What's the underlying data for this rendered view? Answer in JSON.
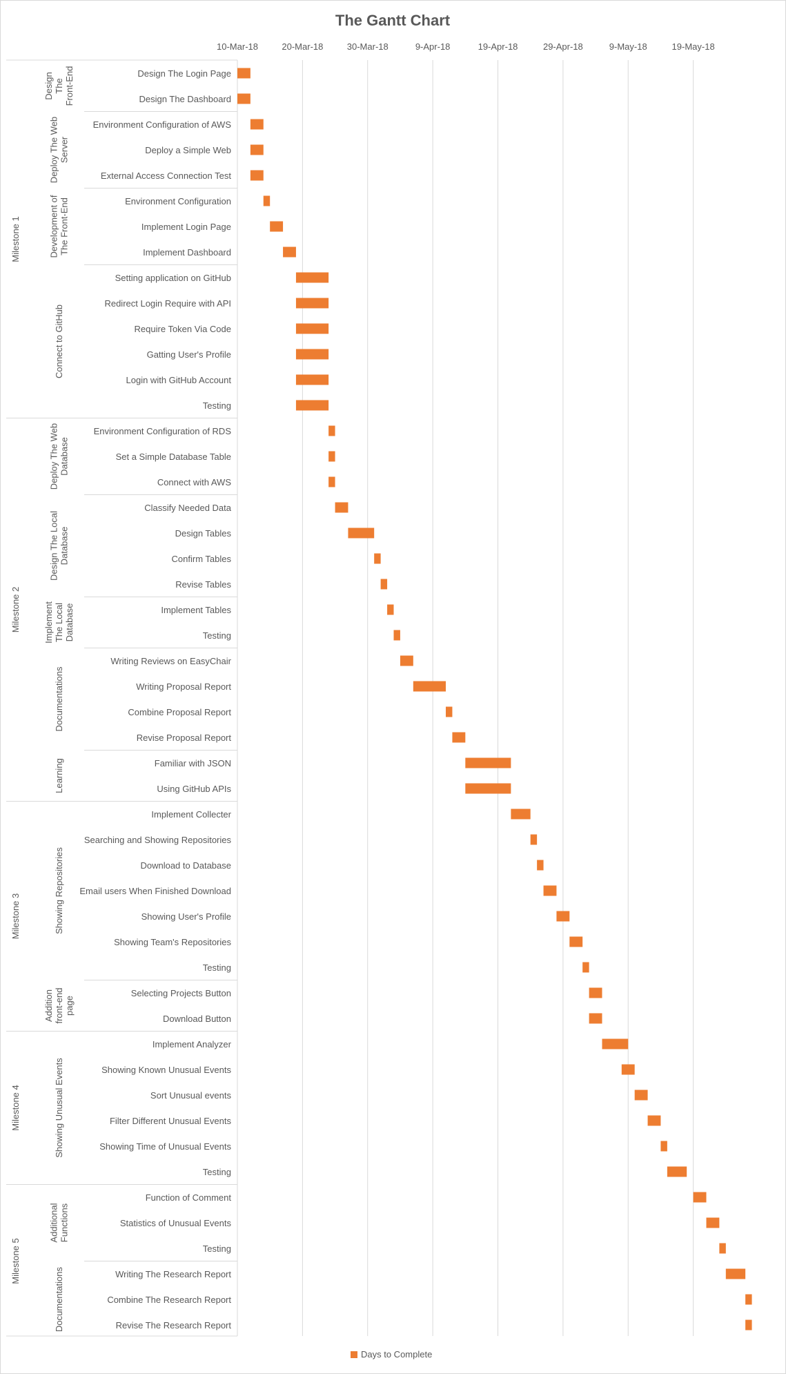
{
  "chart_data": {
    "type": "bar",
    "subtype": "gantt",
    "title": "The Gantt Chart",
    "bar_color": "#ed7d31",
    "grid": true,
    "legend": {
      "position": "bottom",
      "entries": [
        "Days to Complete"
      ]
    },
    "x_axis": {
      "position": "top",
      "range": [
        "2018-03-10",
        "2018-05-29"
      ],
      "tick_labels": [
        "10-Mar-18",
        "20-Mar-18",
        "30-Mar-18",
        "9-Apr-18",
        "19-Apr-18",
        "29-Apr-18",
        "9-May-18",
        "19-May-18"
      ],
      "tick_dates": [
        "2018-03-10",
        "2018-03-20",
        "2018-03-30",
        "2018-04-09",
        "2018-04-19",
        "2018-04-29",
        "2018-05-09",
        "2018-05-19"
      ]
    },
    "milestones": [
      {
        "name": "Milestone 1",
        "groups": [
          {
            "name": "Design The Front-End",
            "tasks": [
              {
                "name": "Design The Login Page",
                "start": "2018-03-10",
                "days": 2
              },
              {
                "name": "Design The Dashboard",
                "start": "2018-03-10",
                "days": 2
              }
            ]
          },
          {
            "name": "Deploy The Web Server",
            "tasks": [
              {
                "name": "Environment Configuration of AWS",
                "start": "2018-03-12",
                "days": 2
              },
              {
                "name": "Deploy a Simple Web",
                "start": "2018-03-12",
                "days": 2
              },
              {
                "name": "External Access Connection Test",
                "start": "2018-03-12",
                "days": 2
              }
            ]
          },
          {
            "name": "Development of The Front-End",
            "tasks": [
              {
                "name": "Environment Configuration",
                "start": "2018-03-14",
                "days": 1
              },
              {
                "name": "Implement Login Page",
                "start": "2018-03-15",
                "days": 2
              },
              {
                "name": "Implement Dashboard",
                "start": "2018-03-17",
                "days": 2
              }
            ]
          },
          {
            "name": "Connect to GitHub",
            "tasks": [
              {
                "name": "Setting application on GitHub",
                "start": "2018-03-19",
                "days": 5
              },
              {
                "name": "Redirect Login Require with API",
                "start": "2018-03-19",
                "days": 5
              },
              {
                "name": "Require Token Via Code",
                "start": "2018-03-19",
                "days": 5
              },
              {
                "name": "Gatting User's Profile",
                "start": "2018-03-19",
                "days": 5
              },
              {
                "name": "Login with GitHub Account",
                "start": "2018-03-19",
                "days": 5
              },
              {
                "name": "Testing",
                "start": "2018-03-19",
                "days": 5
              }
            ]
          }
        ]
      },
      {
        "name": "Milestone 2",
        "groups": [
          {
            "name": "Deploy The Web Database",
            "tasks": [
              {
                "name": "Environment Configuration of RDS",
                "start": "2018-03-24",
                "days": 1
              },
              {
                "name": "Set a Simple Database Table",
                "start": "2018-03-24",
                "days": 1
              },
              {
                "name": "Connect with AWS",
                "start": "2018-03-24",
                "days": 1
              }
            ]
          },
          {
            "name": "Design The Local Database",
            "tasks": [
              {
                "name": "Classify Needed Data",
                "start": "2018-03-25",
                "days": 2
              },
              {
                "name": "Design Tables",
                "start": "2018-03-27",
                "days": 4
              },
              {
                "name": "Confirm Tables",
                "start": "2018-03-31",
                "days": 1
              },
              {
                "name": "Revise Tables",
                "start": "2018-04-01",
                "days": 1
              }
            ]
          },
          {
            "name": "Implement The Local Database",
            "tasks": [
              {
                "name": "Implement Tables",
                "start": "2018-04-02",
                "days": 1
              },
              {
                "name": "Testing",
                "start": "2018-04-03",
                "days": 1
              }
            ]
          },
          {
            "name": "Documentations",
            "tasks": [
              {
                "name": "Writing Reviews on EasyChair",
                "start": "2018-04-04",
                "days": 2
              },
              {
                "name": "Writing Proposal Report",
                "start": "2018-04-06",
                "days": 5
              },
              {
                "name": "Combine Proposal Report",
                "start": "2018-04-11",
                "days": 1
              },
              {
                "name": "Revise Proposal Report",
                "start": "2018-04-12",
                "days": 2
              }
            ]
          },
          {
            "name": "Learning",
            "tasks": [
              {
                "name": "Familiar with JSON",
                "start": "2018-04-14",
                "days": 7
              },
              {
                "name": "Using GitHub APIs",
                "start": "2018-04-14",
                "days": 7
              }
            ]
          }
        ]
      },
      {
        "name": "Milestone 3",
        "groups": [
          {
            "name": "Showing Repositories",
            "tasks": [
              {
                "name": "Implement Collecter",
                "start": "2018-04-21",
                "days": 3
              },
              {
                "name": "Searching and Showing Repositories",
                "start": "2018-04-24",
                "days": 1
              },
              {
                "name": "Download to Database",
                "start": "2018-04-25",
                "days": 1
              },
              {
                "name": "Email users When Finished Download",
                "start": "2018-04-26",
                "days": 2
              },
              {
                "name": "Showing User's Profile",
                "start": "2018-04-28",
                "days": 2
              },
              {
                "name": "Showing Team's Repositories",
                "start": "2018-04-30",
                "days": 2
              },
              {
                "name": "Testing",
                "start": "2018-05-02",
                "days": 1
              }
            ]
          },
          {
            "name": "Addition front-end page",
            "tasks": [
              {
                "name": "Selecting Projects Button",
                "start": "2018-05-03",
                "days": 2
              },
              {
                "name": "Download Button",
                "start": "2018-05-03",
                "days": 2
              }
            ]
          }
        ]
      },
      {
        "name": "Milestone 4",
        "groups": [
          {
            "name": "Showing Unusual Events",
            "tasks": [
              {
                "name": "Implement Analyzer",
                "start": "2018-05-05",
                "days": 4
              },
              {
                "name": "Showing Known Unusual Events",
                "start": "2018-05-08",
                "days": 2
              },
              {
                "name": "Sort Unusual events",
                "start": "2018-05-10",
                "days": 2
              },
              {
                "name": "Filter Different Unusual Events",
                "start": "2018-05-12",
                "days": 2
              },
              {
                "name": "Showing Time of Unusual Events",
                "start": "2018-05-14",
                "days": 1
              },
              {
                "name": "Testing",
                "start": "2018-05-15",
                "days": 3
              }
            ]
          }
        ]
      },
      {
        "name": "Milestone 5",
        "groups": [
          {
            "name": "Additional Functions",
            "tasks": [
              {
                "name": "Function of Comment",
                "start": "2018-05-19",
                "days": 2
              },
              {
                "name": "Statistics of Unusual Events",
                "start": "2018-05-21",
                "days": 2
              },
              {
                "name": "Testing",
                "start": "2018-05-23",
                "days": 1
              }
            ]
          },
          {
            "name": "Documentations",
            "tasks": [
              {
                "name": "Writing The Research Report",
                "start": "2018-05-24",
                "days": 3
              },
              {
                "name": "Combine The Research Report",
                "start": "2018-05-27",
                "days": 1
              },
              {
                "name": "Revise The Research Report",
                "start": "2018-05-27",
                "days": 1
              }
            ]
          }
        ]
      }
    ]
  }
}
